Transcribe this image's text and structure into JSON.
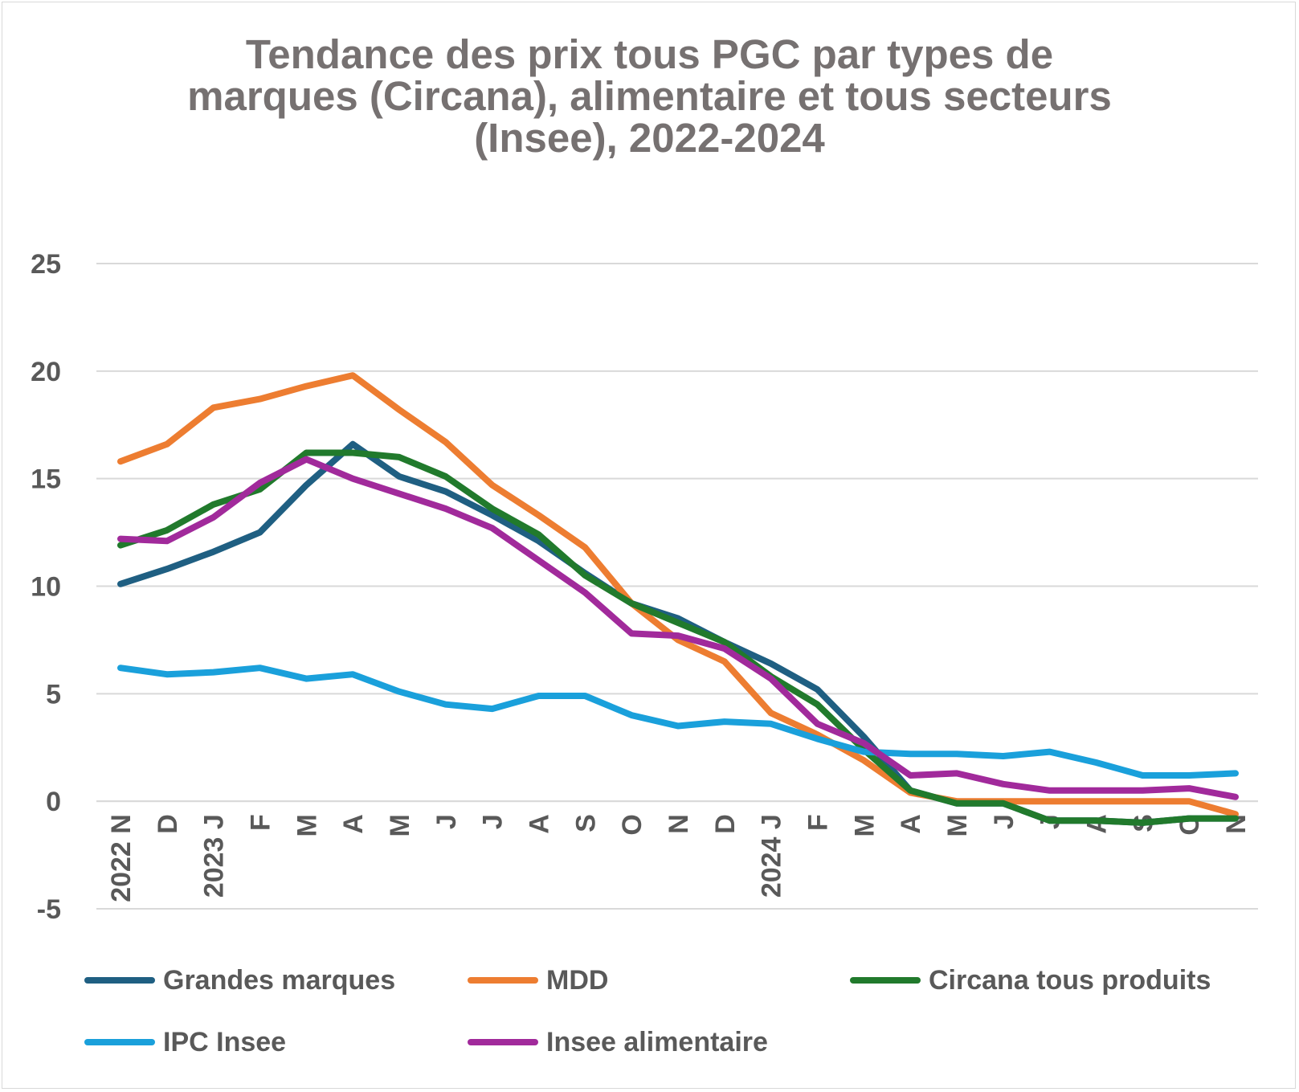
{
  "chart_data": {
    "type": "line",
    "title_lines": [
      "Tendance des prix tous PGC par types de",
      "marques (Circana), alimentaire et tous secteurs",
      "(Insee), 2022-2024"
    ],
    "xlabel": "",
    "ylabel": "",
    "categories": [
      "2022 N",
      "D",
      "2023 J",
      "F",
      "M",
      "A",
      "M",
      "J",
      "J",
      "A",
      "S",
      "O",
      "N",
      "D",
      "2024 J",
      "F",
      "M",
      "A",
      "M",
      "J",
      "J",
      "A",
      "S",
      "O",
      "N"
    ],
    "ylim": [
      -5,
      25
    ],
    "yticks": [
      -5,
      0,
      5,
      10,
      15,
      20,
      25
    ],
    "grid": true,
    "legend_position": "bottom",
    "series": [
      {
        "name": "Grandes marques",
        "color": "#1f5f82",
        "values": [
          10.1,
          10.8,
          11.6,
          12.5,
          14.7,
          16.6,
          15.1,
          14.4,
          13.3,
          12.1,
          10.6,
          9.2,
          8.5,
          7.4,
          6.4,
          5.2,
          3.0,
          0.5,
          -0.1,
          -0.1,
          -0.9,
          -0.9,
          -1.0,
          -0.8,
          -0.8
        ]
      },
      {
        "name": "MDD",
        "color": "#ed7d31",
        "values": [
          15.8,
          16.6,
          18.3,
          18.7,
          19.3,
          19.8,
          18.2,
          16.7,
          14.7,
          13.3,
          11.8,
          9.2,
          7.5,
          6.5,
          4.1,
          3.1,
          1.9,
          0.4,
          0.0,
          0.0,
          0.0,
          0.0,
          0.0,
          0.0,
          -0.6
        ]
      },
      {
        "name": "Circana tous produits",
        "color": "#217a2c",
        "values": [
          11.9,
          12.6,
          13.8,
          14.5,
          16.2,
          16.2,
          16.0,
          15.1,
          13.6,
          12.4,
          10.5,
          9.2,
          8.3,
          7.4,
          5.8,
          4.5,
          2.4,
          0.5,
          -0.1,
          -0.1,
          -0.9,
          -0.9,
          -1.0,
          -0.8,
          -0.8
        ]
      },
      {
        "name": "IPC Insee",
        "color": "#1aa0db",
        "values": [
          6.2,
          5.9,
          6.0,
          6.2,
          5.7,
          5.9,
          5.1,
          4.5,
          4.3,
          4.9,
          4.9,
          4.0,
          3.5,
          3.7,
          3.6,
          2.9,
          2.3,
          2.2,
          2.2,
          2.1,
          2.3,
          1.8,
          1.2,
          1.2,
          1.3
        ]
      },
      {
        "name": "Insee alimentaire",
        "color": "#a12a9b",
        "values": [
          12.2,
          12.1,
          13.2,
          14.8,
          15.9,
          15.0,
          14.3,
          13.6,
          12.7,
          11.2,
          9.7,
          7.8,
          7.7,
          7.1,
          5.7,
          3.6,
          2.7,
          1.2,
          1.3,
          0.8,
          0.5,
          0.5,
          0.5,
          0.6,
          0.2
        ]
      }
    ]
  }
}
